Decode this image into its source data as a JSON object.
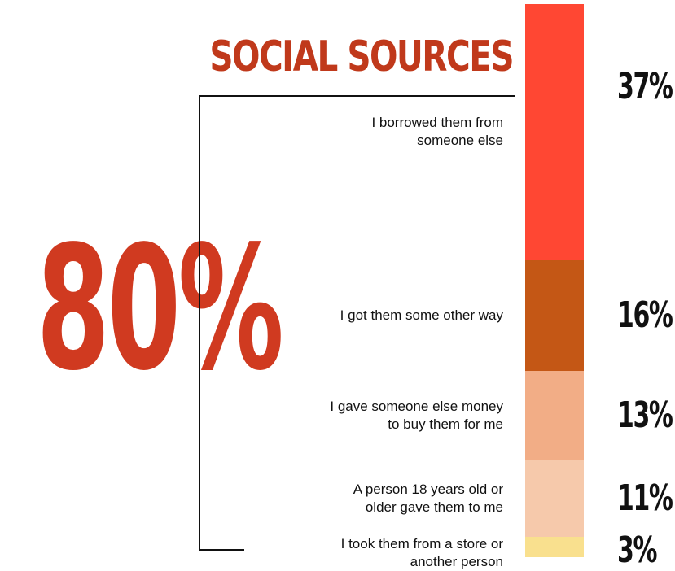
{
  "title": "SOCIAL SOURCES",
  "total_label": "80%",
  "colors": {
    "title": "#c0391b",
    "total": "#d03a20",
    "text": "#111111"
  },
  "chart_data": {
    "type": "bar",
    "stacked": true,
    "orientation": "vertical",
    "unit": "%",
    "categories": [
      "I borrowed them from\nsomeone else",
      "I got them some other way",
      "I gave someone else money\nto buy them for me",
      "A person 18 years old or\nolder gave them to me",
      "I took them from a store or\nanother person"
    ],
    "values": [
      37,
      16,
      13,
      11,
      3
    ],
    "value_labels": [
      "37%",
      "16%",
      "13%",
      "11%",
      "3%"
    ],
    "colors": [
      "#ff4733",
      "#c45715",
      "#f2ad86",
      "#f6c9ab",
      "#f9e08e"
    ],
    "total": 80
  }
}
